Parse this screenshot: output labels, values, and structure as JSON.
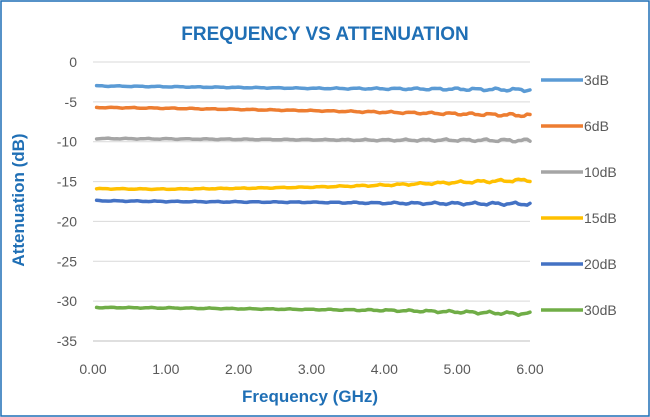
{
  "chart_data": {
    "type": "line",
    "title": "FREQUENCY VS ATTENUATION",
    "xlabel": "Frequency (GHz)",
    "ylabel": "Attenuation (dB)",
    "xlim": [
      0,
      6
    ],
    "ylim": [
      -35,
      0
    ],
    "x_ticks": [
      "0.00",
      "1.00",
      "2.00",
      "3.00",
      "4.00",
      "5.00",
      "6.00"
    ],
    "y_ticks": [
      "0",
      "-5",
      "-10",
      "-15",
      "-20",
      "-25",
      "-30",
      "-35"
    ],
    "grid": "horizontal",
    "legend": "right",
    "x": [
      0.05,
      1.0,
      2.0,
      3.0,
      4.0,
      5.0,
      6.0
    ],
    "series": [
      {
        "name": "3dB",
        "color": "#5b9bd5",
        "values": [
          -3.0,
          -3.1,
          -3.2,
          -3.3,
          -3.35,
          -3.4,
          -3.5
        ]
      },
      {
        "name": "6dB",
        "color": "#ed7d31",
        "values": [
          -5.7,
          -5.8,
          -5.95,
          -6.1,
          -6.3,
          -6.5,
          -6.7
        ]
      },
      {
        "name": "10dB",
        "color": "#a5a5a5",
        "values": [
          -9.6,
          -9.65,
          -9.7,
          -9.75,
          -9.8,
          -9.8,
          -9.85
        ]
      },
      {
        "name": "15dB",
        "color": "#ffc000",
        "values": [
          -15.9,
          -15.95,
          -15.85,
          -15.7,
          -15.45,
          -15.1,
          -14.8
        ]
      },
      {
        "name": "20dB",
        "color": "#4472c4",
        "values": [
          -17.4,
          -17.5,
          -17.55,
          -17.6,
          -17.7,
          -17.75,
          -17.8
        ]
      },
      {
        "name": "30dB",
        "color": "#70ad47",
        "values": [
          -30.8,
          -30.85,
          -30.95,
          -31.05,
          -31.15,
          -31.35,
          -31.6
        ]
      }
    ]
  }
}
